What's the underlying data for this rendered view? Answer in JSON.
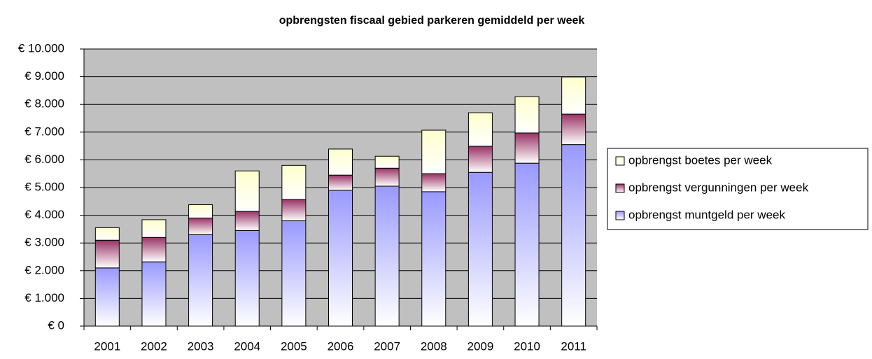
{
  "chart_data": {
    "type": "stacked_bar",
    "title": "opbrengsten fiscaal gebied parkeren gemiddeld per week",
    "categories": [
      "2001",
      "2002",
      "2003",
      "2004",
      "2005",
      "2006",
      "2007",
      "2008",
      "2009",
      "2010",
      "2011"
    ],
    "series": [
      {
        "name": "opbrengst muntgeld per week",
        "color": "#9999ff",
        "values": [
          2100,
          2320,
          3300,
          3450,
          3800,
          4900,
          5050,
          4850,
          5550,
          5880,
          6550
        ]
      },
      {
        "name": "opbrengst vergunningen per week",
        "color": "#993366",
        "values": [
          1000,
          880,
          600,
          690,
          770,
          550,
          650,
          650,
          940,
          1090,
          1100
        ]
      },
      {
        "name": "opbrengst boetes per week",
        "color": "#ffffcc",
        "values": [
          450,
          640,
          480,
          1460,
          1230,
          940,
          430,
          1570,
          1210,
          1310,
          1340
        ]
      }
    ],
    "ylim": [
      0,
      10000
    ],
    "yticks": [
      {
        "value": 0,
        "label": "€ 0"
      },
      {
        "value": 1000,
        "label": "€ 1.000"
      },
      {
        "value": 2000,
        "label": "€ 2.000"
      },
      {
        "value": 3000,
        "label": "€ 3.000"
      },
      {
        "value": 4000,
        "label": "€ 4.000"
      },
      {
        "value": 5000,
        "label": "€ 5.000"
      },
      {
        "value": 6000,
        "label": "€ 6.000"
      },
      {
        "value": 7000,
        "label": "€ 7.000"
      },
      {
        "value": 8000,
        "label": "€ 8.000"
      },
      {
        "value": 9000,
        "label": "€ 9.000"
      },
      {
        "value": 10000,
        "label": "€ 10.000"
      }
    ],
    "grid": true,
    "legend": "right"
  }
}
